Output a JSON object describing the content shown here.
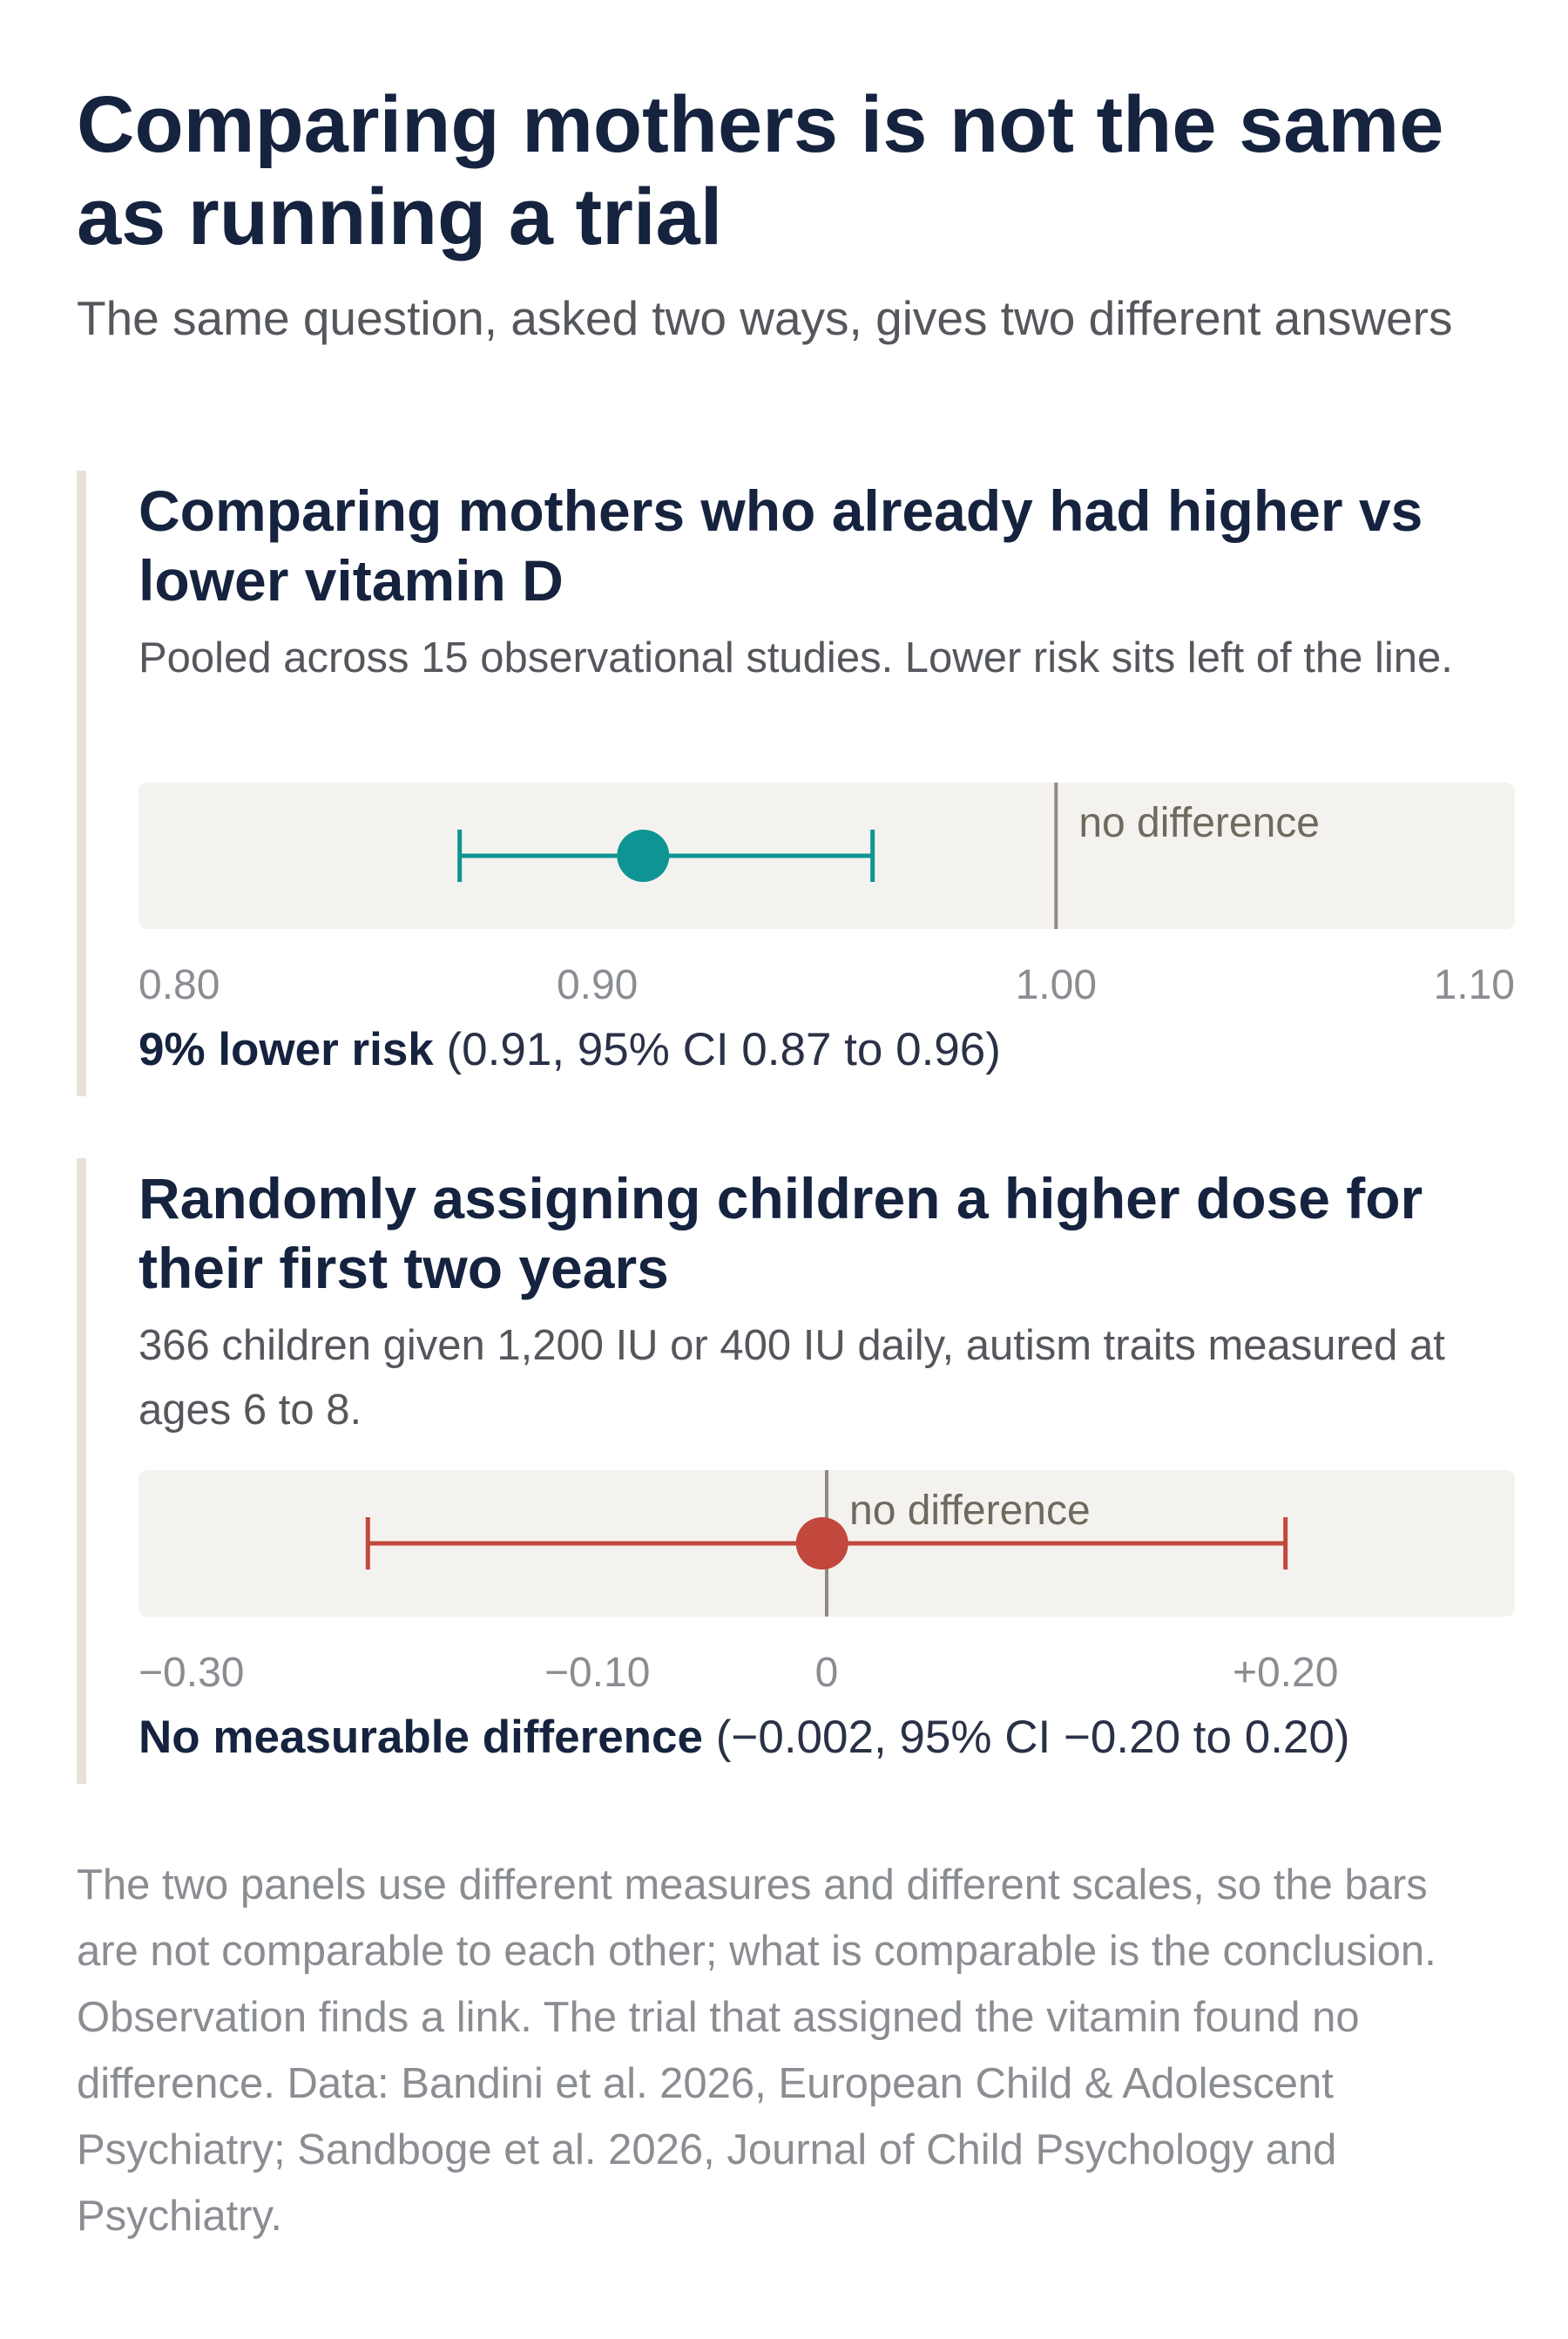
{
  "title": "Comparing mothers is not the same as running a trial",
  "subtitle": "The same question, asked two ways, gives two different answers",
  "chart_data": [
    {
      "type": "forest",
      "title": "Comparing mothers who already had higher vs lower vitamin D",
      "note": "Pooled across 15 observational studies. Lower risk sits left of the line.",
      "xlim": [
        0.8,
        1.1
      ],
      "ticks": [
        {
          "value": 0.8,
          "label": "0.80"
        },
        {
          "value": 0.9,
          "label": "0.90"
        },
        {
          "value": 1.0,
          "label": "1.00"
        },
        {
          "value": 1.1,
          "label": "1.10"
        }
      ],
      "reference": {
        "value": 1.0,
        "label": "no difference"
      },
      "estimate": 0.91,
      "ci": [
        0.87,
        0.96
      ],
      "color": "#0f9494",
      "result_lead": "9% lower risk",
      "result_detail": "(0.91, 95% CI 0.87 to 0.96)"
    },
    {
      "type": "forest",
      "title": "Randomly assigning children a higher dose for their first two years",
      "note": "366 children given 1,200 IU or 400 IU daily, autism traits measured at ages 6 to 8.",
      "xlim": [
        -0.3,
        0.3
      ],
      "ticks": [
        {
          "value": -0.3,
          "label": "−0.30"
        },
        {
          "value": -0.1,
          "label": "−0.10"
        },
        {
          "value": 0,
          "label": "0"
        },
        {
          "value": 0.2,
          "label": "+0.20"
        }
      ],
      "reference": {
        "value": 0,
        "label": "no difference"
      },
      "estimate": -0.002,
      "ci": [
        -0.2,
        0.2
      ],
      "color": "#c2473c",
      "result_lead": "No measurable difference",
      "result_detail": "(−0.002, 95% CI −0.20 to 0.20)"
    }
  ],
  "footnote": "The two panels use different measures and different scales, so the bars are not comparable to each other; what is comparable is the conclusion. Observation finds a link. The trial that assigned the vitamin found no difference. Data: Bandini et al. 2026, European Child & Adolescent Psychiatry; Sandboge et al. 2026, Journal of Child Psychology and Psychiatry."
}
